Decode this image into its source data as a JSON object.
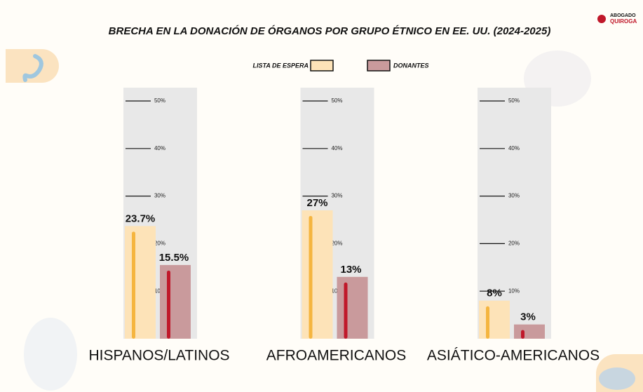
{
  "chart_data": {
    "type": "bar",
    "title": "BRECHA EN LA DONACIÓN DE ÓRGANOS POR GRUPO ÉTNICO EN EE. UU. (2024-2025)",
    "logo": [
      "ABOGADO",
      "QUIROGA"
    ],
    "categories": [
      "HISPANOS/LATINOS",
      "AFROAMERICANOS",
      "ASIÁTICO-AMERICANOS"
    ],
    "series": [
      {
        "name": "LISTA DE ESPERA",
        "color": "#fde3b8",
        "stripe": "#f5b53f",
        "values": [
          23.7,
          27,
          8
        ],
        "value_labels": [
          "23.7%",
          "27%",
          "8%"
        ]
      },
      {
        "name": "DONANTES",
        "color": "#c99a9c",
        "stripe": "#c0182a",
        "values": [
          15.5,
          13,
          3
        ],
        "value_labels": [
          "15.5%",
          "13%",
          "3%"
        ]
      }
    ],
    "ylim": [
      0,
      50
    ],
    "yticks": [
      {
        "value": 10,
        "label": "10%"
      },
      {
        "value": 20,
        "label": "20%"
      },
      {
        "value": 30,
        "label": "30%"
      },
      {
        "value": 40,
        "label": "40%"
      },
      {
        "value": 50,
        "label": "50%"
      }
    ]
  }
}
